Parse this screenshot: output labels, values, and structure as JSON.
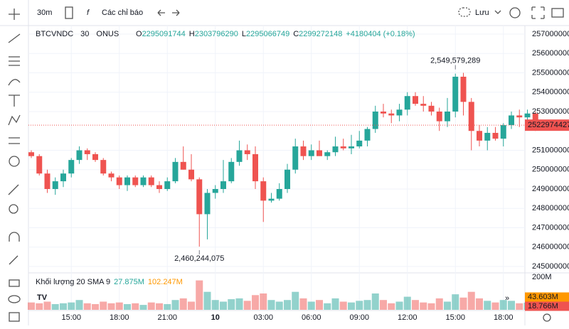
{
  "toolbar": {
    "interval": "30m",
    "indicators": "Các chỉ báo",
    "save": "Lưu"
  },
  "legend": {
    "symbol": "BTCVNDC",
    "interval": "30",
    "exchange": "ONUS",
    "open_label": "O",
    "open": "2295091744",
    "high_label": "H",
    "high": "2303796290",
    "low_label": "L",
    "low": "2295066749",
    "close_label": "C",
    "close": "2299272148",
    "change": "+4180404 (+0.18%)"
  },
  "volume_legend": {
    "name": "Khối lượng 20 SMA 9",
    "value": "27.875M",
    "sma": "102.247M"
  },
  "chart_data": {
    "type": "candlestick",
    "categories": [
      null,
      null,
      null,
      null,
      null,
      "15:00",
      null,
      null,
      null,
      null,
      null,
      "18:00",
      null,
      null,
      null,
      null,
      null,
      "21:00",
      null,
      null,
      null,
      null,
      null,
      "10",
      null,
      null,
      null,
      null,
      null,
      "03:00",
      null,
      null,
      null,
      null,
      null,
      "06:00",
      null,
      null,
      null,
      null,
      null,
      "09:00",
      null,
      null,
      null,
      null,
      null,
      "12:00",
      null,
      null,
      null,
      null,
      null,
      "15:00",
      null,
      null,
      null,
      null,
      null,
      "18:00",
      null,
      null,
      null,
      null
    ],
    "open": [
      2509000000,
      2507000000,
      2498000000,
      2490000000,
      2494000000,
      2498000000,
      2505000000,
      2510000000,
      2508000000,
      2505000000,
      2498000000,
      2496000000,
      2492000000,
      2496000000,
      2492000000,
      2496000000,
      2492000000,
      2490000000,
      2494000000,
      2504000000,
      2500000000,
      2495000000,
      2477000000,
      2488000000,
      2490000000,
      2494000000,
      2504000000,
      2510000000,
      2508000000,
      2494000000,
      2484000000,
      2485000000,
      2490000000,
      2500000000,
      2512000000,
      2507000000,
      2510000000,
      2507000000,
      2509000000,
      2512000000,
      2511000000,
      2512000000,
      2515000000,
      2521000000,
      2530000000,
      2529000000,
      2528000000,
      2531000000,
      2538000000,
      2534000000,
      2533000000,
      2530000000,
      2525000000,
      2530000000,
      2548000000,
      2535000000,
      2520000000,
      2515000000,
      2519000000,
      2516000000,
      2523000000,
      2528000000,
      2527000000,
      2529000000
    ],
    "high": [
      2510000000,
      2508000000,
      2500000000,
      2496000000,
      2500000000,
      2506000000,
      2512000000,
      2511000000,
      2509000000,
      2506000000,
      2499000000,
      2497000000,
      2497000000,
      2497000000,
      2497000000,
      2497000000,
      2494000000,
      2496000000,
      2506000000,
      2512000000,
      2508000000,
      2496000000,
      2490000000,
      2492000000,
      2505000000,
      2506000000,
      2515000000,
      2513000000,
      2512000000,
      2496000000,
      2488000000,
      2493000000,
      2503000000,
      2516000000,
      2515000000,
      2513000000,
      2515000000,
      2510000000,
      2517000000,
      2516000000,
      2518000000,
      2520000000,
      2522000000,
      2533000000,
      2534000000,
      2531000000,
      2534000000,
      2540000000,
      2540000000,
      2538000000,
      2535000000,
      2532000000,
      2537000000,
      2549579289,
      2550000000,
      2537000000,
      2523000000,
      2522000000,
      2522000000,
      2524000000,
      2530000000,
      2531000000,
      2531000000,
      2530000000
    ],
    "low": [
      2506000000,
      2497000000,
      2488000000,
      2487000000,
      2491000000,
      2496000000,
      2503000000,
      2505000000,
      2504000000,
      2497000000,
      2494000000,
      2490000000,
      2489000000,
      2491000000,
      2491000000,
      2491000000,
      2488000000,
      2489000000,
      2493000000,
      2500000000,
      2494000000,
      2460244075,
      2464000000,
      2485000000,
      2488000000,
      2493000000,
      2502000000,
      2505000000,
      2490000000,
      2473000000,
      2483000000,
      2484000000,
      2488000000,
      2498000000,
      2505000000,
      2505000000,
      2507000000,
      2505000000,
      2507000000,
      2510000000,
      2508000000,
      2511000000,
      2512000000,
      2519000000,
      2527000000,
      2524000000,
      2525000000,
      2528000000,
      2533000000,
      2530000000,
      2528000000,
      2520000000,
      2522000000,
      2527000000,
      2528000000,
      2510000000,
      2512000000,
      2510000000,
      2515000000,
      2512000000,
      2521000000,
      2522000000,
      2521000000,
      2520000000
    ],
    "close": [
      2507000000,
      2498000000,
      2490000000,
      2494000000,
      2498000000,
      2505000000,
      2510000000,
      2508000000,
      2505000000,
      2498000000,
      2496000000,
      2492000000,
      2496000000,
      2492000000,
      2496000000,
      2492000000,
      2490000000,
      2494000000,
      2504000000,
      2500000000,
      2495000000,
      2477000000,
      2488000000,
      2490000000,
      2494000000,
      2504000000,
      2510000000,
      2508000000,
      2494000000,
      2484000000,
      2485000000,
      2490000000,
      2500000000,
      2512000000,
      2507000000,
      2510000000,
      2507000000,
      2509000000,
      2512000000,
      2511000000,
      2512000000,
      2515000000,
      2521000000,
      2530000000,
      2529000000,
      2528000000,
      2531000000,
      2538000000,
      2534000000,
      2533000000,
      2530000000,
      2525000000,
      2530000000,
      2548000000,
      2535000000,
      2520000000,
      2515000000,
      2519000000,
      2516000000,
      2523000000,
      2528000000,
      2527000000,
      2529000000,
      2522974427
    ],
    "volume": [
      45000000,
      40000000,
      50000000,
      35000000,
      40000000,
      45000000,
      60000000,
      40000000,
      35000000,
      50000000,
      40000000,
      45000000,
      35000000,
      40000000,
      30000000,
      45000000,
      40000000,
      35000000,
      60000000,
      70000000,
      50000000,
      180000000,
      110000000,
      60000000,
      50000000,
      65000000,
      70000000,
      55000000,
      90000000,
      100000000,
      60000000,
      50000000,
      60000000,
      110000000,
      70000000,
      50000000,
      60000000,
      40000000,
      70000000,
      50000000,
      45000000,
      55000000,
      60000000,
      100000000,
      60000000,
      40000000,
      50000000,
      80000000,
      60000000,
      45000000,
      40000000,
      70000000,
      50000000,
      95000000,
      75000000,
      110000000,
      70000000,
      55000000,
      45000000,
      60000000,
      55000000,
      40000000,
      43603000,
      18766000
    ],
    "up_color": "#26a69a",
    "down_color": "#ef5350",
    "ylim": [
      2450000000,
      2570000000
    ],
    "yticks": [
      2450000000,
      2460000000,
      2470000000,
      2480000000,
      2490000000,
      2500000000,
      2510000000,
      2530000000,
      2540000000,
      2550000000,
      2560000000,
      2570000000
    ],
    "vlim": [
      0,
      200000000
    ],
    "vticks": [
      {
        "value": 200000000,
        "label": "200M"
      }
    ],
    "last_price": 2522974427,
    "last_volume": {
      "value": 43603000,
      "label": "43.603M"
    },
    "last_volume_down": {
      "value": 18766000,
      "label": "18.766M"
    },
    "annotations": [
      {
        "value": 2549579289,
        "label": "2,549,579,289"
      },
      {
        "value": 2460244075,
        "label": "2,460,244,075"
      }
    ]
  }
}
